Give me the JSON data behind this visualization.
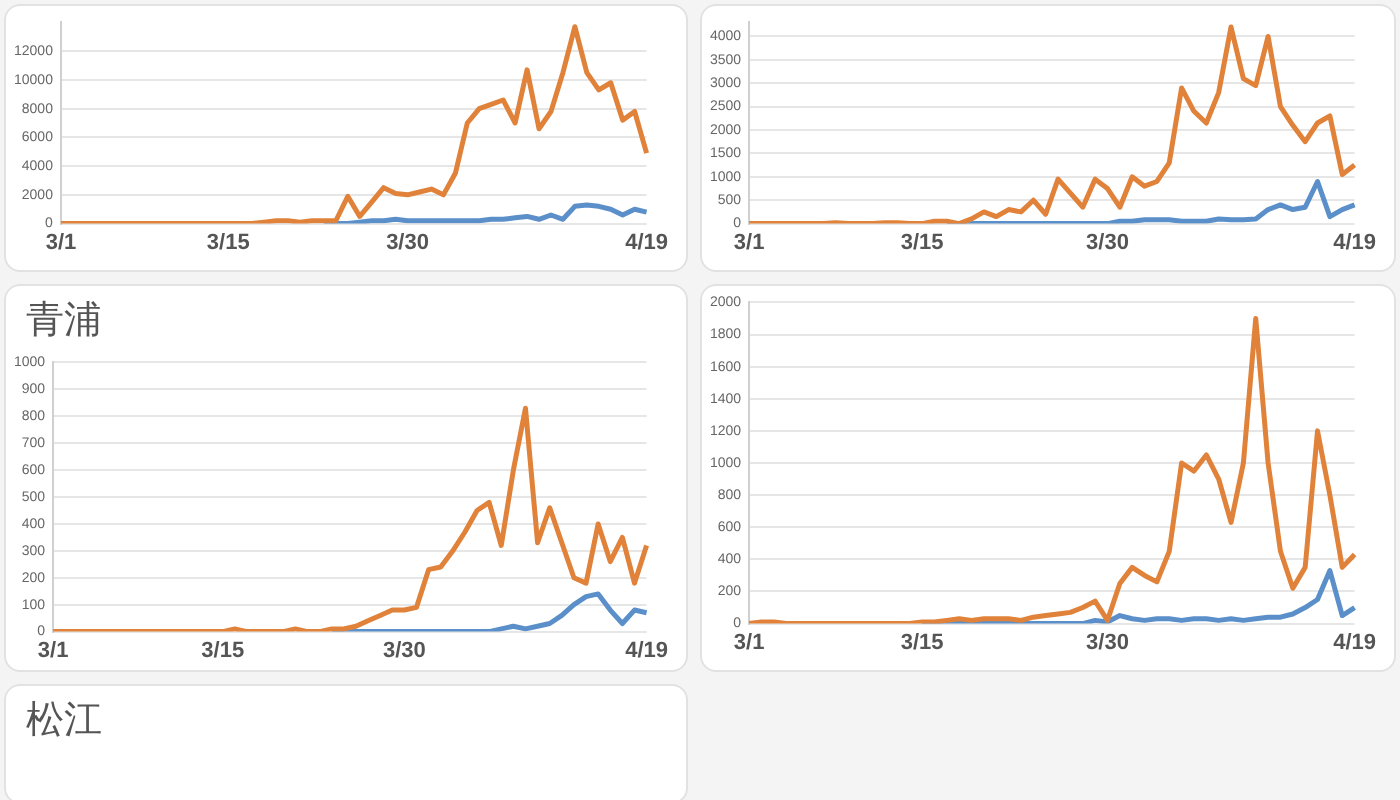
{
  "chart_data": [
    {
      "type": "line",
      "categories": [
        "3/1",
        null,
        null,
        null,
        null,
        null,
        null,
        null,
        null,
        null,
        null,
        null,
        null,
        null,
        "3/15",
        null,
        null,
        null,
        null,
        null,
        null,
        null,
        null,
        null,
        null,
        null,
        null,
        null,
        null,
        "3/30",
        null,
        null,
        null,
        null,
        null,
        null,
        null,
        null,
        null,
        null,
        null,
        null,
        null,
        null,
        null,
        null,
        null,
        null,
        null,
        "4/19"
      ],
      "series": [
        {
          "color": "#e0823a",
          "values": [
            0,
            0,
            0,
            0,
            0,
            0,
            0,
            0,
            0,
            0,
            0,
            0,
            0,
            0,
            0,
            0,
            0,
            100,
            200,
            200,
            100,
            200,
            200,
            200,
            1900,
            500,
            1500,
            2500,
            2100,
            2000,
            2200,
            2400,
            2000,
            3500,
            7000,
            8000,
            8300,
            8600,
            7000,
            10700,
            6600,
            7800,
            10500,
            13700,
            10500,
            9300,
            9800,
            7200,
            7800,
            4900
          ]
        },
        {
          "color": "#5b8fc9",
          "values": [
            null,
            null,
            null,
            null,
            null,
            null,
            null,
            null,
            null,
            null,
            null,
            null,
            null,
            null,
            null,
            null,
            null,
            null,
            null,
            null,
            null,
            null,
            0,
            0,
            0,
            100,
            200,
            200,
            300,
            200,
            200,
            200,
            200,
            200,
            200,
            200,
            300,
            300,
            400,
            500,
            300,
            600,
            300,
            1200,
            1300,
            1200,
            1000,
            600,
            1000,
            800
          ]
        }
      ],
      "ylim": [
        0,
        14000
      ],
      "yticks": [
        0,
        2000,
        4000,
        6000,
        8000,
        10000,
        12000
      ],
      "grid": "y",
      "marker": "none"
    },
    {
      "type": "line",
      "categories": [
        "3/1",
        null,
        null,
        null,
        null,
        null,
        null,
        null,
        null,
        null,
        null,
        null,
        null,
        null,
        "3/15",
        null,
        null,
        null,
        null,
        null,
        null,
        null,
        null,
        null,
        null,
        null,
        null,
        null,
        null,
        "3/30",
        null,
        null,
        null,
        null,
        null,
        null,
        null,
        null,
        null,
        null,
        null,
        null,
        null,
        null,
        null,
        null,
        null,
        null,
        null,
        "4/19"
      ],
      "series": [
        {
          "color": "#e0823a",
          "values": [
            0,
            0,
            0,
            0,
            0,
            0,
            0,
            20,
            0,
            0,
            0,
            20,
            20,
            0,
            0,
            50,
            50,
            0,
            100,
            250,
            150,
            300,
            250,
            500,
            200,
            950,
            650,
            350,
            950,
            750,
            350,
            1000,
            800,
            900,
            1300,
            2900,
            2400,
            2150,
            2800,
            4200,
            3100,
            2950,
            4000,
            2500,
            2100,
            1750,
            2150,
            2300,
            1050,
            1250
          ]
        },
        {
          "color": "#5b8fc9",
          "values": [
            null,
            null,
            null,
            null,
            null,
            null,
            null,
            null,
            null,
            null,
            null,
            null,
            null,
            null,
            null,
            null,
            0,
            0,
            0,
            0,
            0,
            0,
            0,
            0,
            0,
            0,
            0,
            0,
            0,
            0,
            50,
            50,
            80,
            80,
            80,
            50,
            50,
            50,
            100,
            80,
            80,
            100,
            300,
            400,
            300,
            350,
            900,
            150,
            300,
            400
          ]
        }
      ],
      "ylim": [
        0,
        4300
      ],
      "yticks": [
        0,
        500,
        1000,
        1500,
        2000,
        2500,
        3000,
        3500,
        4000
      ],
      "grid": "y",
      "marker": "none"
    },
    {
      "type": "line",
      "title": "青浦",
      "categories": [
        "3/1",
        null,
        null,
        null,
        null,
        null,
        null,
        null,
        null,
        null,
        null,
        null,
        null,
        null,
        "3/15",
        null,
        null,
        null,
        null,
        null,
        null,
        null,
        null,
        null,
        null,
        null,
        null,
        null,
        null,
        "3/30",
        null,
        null,
        null,
        null,
        null,
        null,
        null,
        null,
        null,
        null,
        null,
        null,
        null,
        null,
        null,
        null,
        null,
        null,
        null,
        "4/19"
      ],
      "series": [
        {
          "color": "#e0823a",
          "values": [
            0,
            0,
            0,
            0,
            0,
            0,
            0,
            0,
            0,
            0,
            0,
            0,
            0,
            0,
            0,
            10,
            0,
            0,
            0,
            0,
            10,
            0,
            0,
            10,
            10,
            20,
            40,
            60,
            80,
            80,
            90,
            230,
            240,
            300,
            370,
            450,
            480,
            320,
            600,
            830,
            330,
            460,
            330,
            200,
            180,
            400,
            260,
            350,
            180,
            320
          ]
        },
        {
          "color": "#5b8fc9",
          "values": [
            null,
            null,
            null,
            null,
            null,
            null,
            null,
            null,
            null,
            null,
            null,
            null,
            null,
            null,
            null,
            null,
            null,
            null,
            null,
            null,
            null,
            null,
            null,
            0,
            0,
            0,
            0,
            0,
            0,
            0,
            0,
            0,
            0,
            0,
            0,
            0,
            0,
            10,
            20,
            10,
            20,
            30,
            60,
            100,
            130,
            140,
            80,
            30,
            80,
            70
          ]
        }
      ],
      "ylim": [
        0,
        1000
      ],
      "yticks": [
        0,
        100,
        200,
        300,
        400,
        500,
        600,
        700,
        800,
        900,
        1000
      ],
      "grid": "y",
      "marker": "none"
    },
    {
      "type": "line",
      "categories": [
        "3/1",
        null,
        null,
        null,
        null,
        null,
        null,
        null,
        null,
        null,
        null,
        null,
        null,
        null,
        "3/15",
        null,
        null,
        null,
        null,
        null,
        null,
        null,
        null,
        null,
        null,
        null,
        null,
        null,
        null,
        "3/30",
        null,
        null,
        null,
        null,
        null,
        null,
        null,
        null,
        null,
        null,
        null,
        null,
        null,
        null,
        null,
        null,
        null,
        null,
        null,
        "4/19"
      ],
      "series": [
        {
          "color": "#e0823a",
          "values": [
            0,
            10,
            10,
            0,
            0,
            0,
            0,
            0,
            0,
            0,
            0,
            0,
            0,
            0,
            10,
            10,
            20,
            30,
            20,
            30,
            30,
            30,
            20,
            40,
            50,
            60,
            70,
            100,
            140,
            20,
            250,
            350,
            300,
            260,
            450,
            1000,
            950,
            1050,
            900,
            630,
            1000,
            1900,
            1000,
            450,
            220,
            350,
            1200,
            800,
            350,
            430
          ]
        },
        {
          "color": "#5b8fc9",
          "values": [
            null,
            null,
            null,
            null,
            null,
            null,
            null,
            null,
            null,
            null,
            null,
            null,
            null,
            null,
            0,
            0,
            0,
            0,
            0,
            0,
            0,
            0,
            0,
            0,
            0,
            0,
            0,
            0,
            20,
            10,
            50,
            30,
            20,
            30,
            30,
            20,
            30,
            30,
            20,
            30,
            20,
            30,
            40,
            40,
            60,
            100,
            150,
            330,
            50,
            100
          ]
        }
      ],
      "ylim": [
        0,
        2000
      ],
      "yticks": [
        0,
        200,
        400,
        600,
        800,
        1000,
        1200,
        1400,
        1600,
        1800,
        2000
      ],
      "grid": "y",
      "marker": "none"
    },
    {
      "type": "other",
      "title": "松江"
    }
  ]
}
